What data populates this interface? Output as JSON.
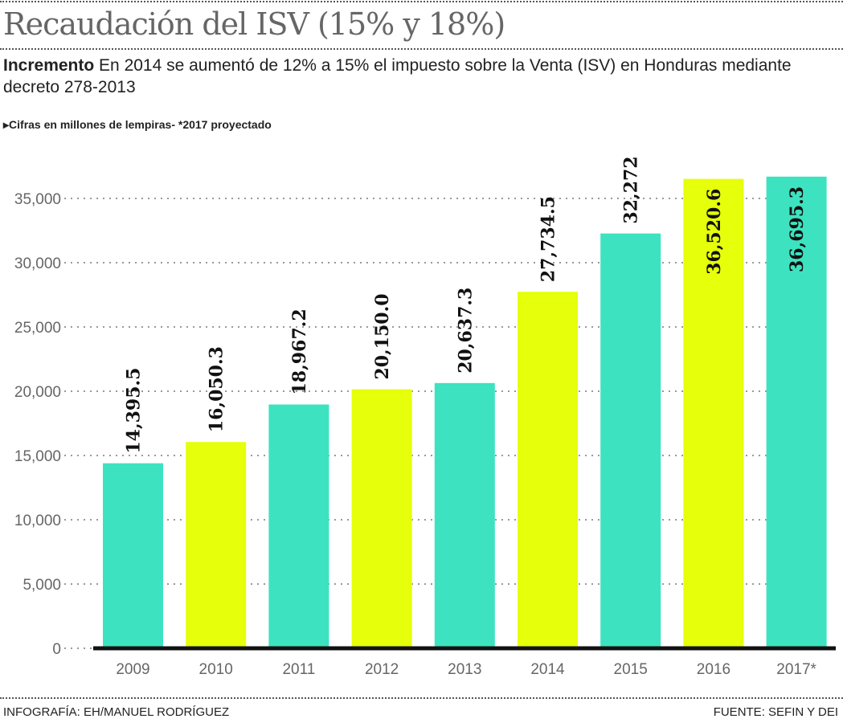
{
  "header": {
    "title": "Recaudación del ISV (15% y 18%)",
    "subtitle_lead": "Incremento",
    "subtitle_text": "En 2014 se aumentó de 12% a 15% el impuesto sobre la Venta (ISV) en Honduras mediante decreto 278-2013",
    "note": "Cifras en millones de lempiras- *2017 proyectado"
  },
  "footer": {
    "credit": "INFOGRAFÍA: EH/MANUEL RODRÍGUEZ",
    "source": "FUENTE: SEFIN Y DEI"
  },
  "chart_data": {
    "type": "bar",
    "title": "Recaudación del ISV (15% y 18%)",
    "xlabel": "",
    "ylabel": "",
    "categories": [
      "2009",
      "2010",
      "2011",
      "2012",
      "2013",
      "2014",
      "2015",
      "2016",
      "2017*"
    ],
    "values": [
      14395.5,
      16050.3,
      18967.2,
      20150.0,
      20637.3,
      27734.5,
      32272,
      36520.6,
      36695.3
    ],
    "value_labels": [
      "14,395.5",
      "16,050.3",
      "18,967.2",
      "20,150.0",
      "20,637.3",
      "27,734.5",
      "32,272",
      "36,520.6",
      "36,695.3"
    ],
    "bar_colors": [
      "#3de3c0",
      "#e6ff0a",
      "#3de3c0",
      "#e6ff0a",
      "#3de3c0",
      "#e6ff0a",
      "#3de3c0",
      "#e6ff0a",
      "#3de3c0"
    ],
    "ylim": [
      0,
      35000
    ],
    "yticks": [
      0,
      5000,
      10000,
      15000,
      20000,
      25000,
      30000,
      35000
    ],
    "ytick_labels": [
      "0",
      "5,000",
      "10,000",
      "15,000",
      "20,000",
      "25,000",
      "30,000",
      "35,000"
    ],
    "grid": true,
    "legend": "none"
  }
}
